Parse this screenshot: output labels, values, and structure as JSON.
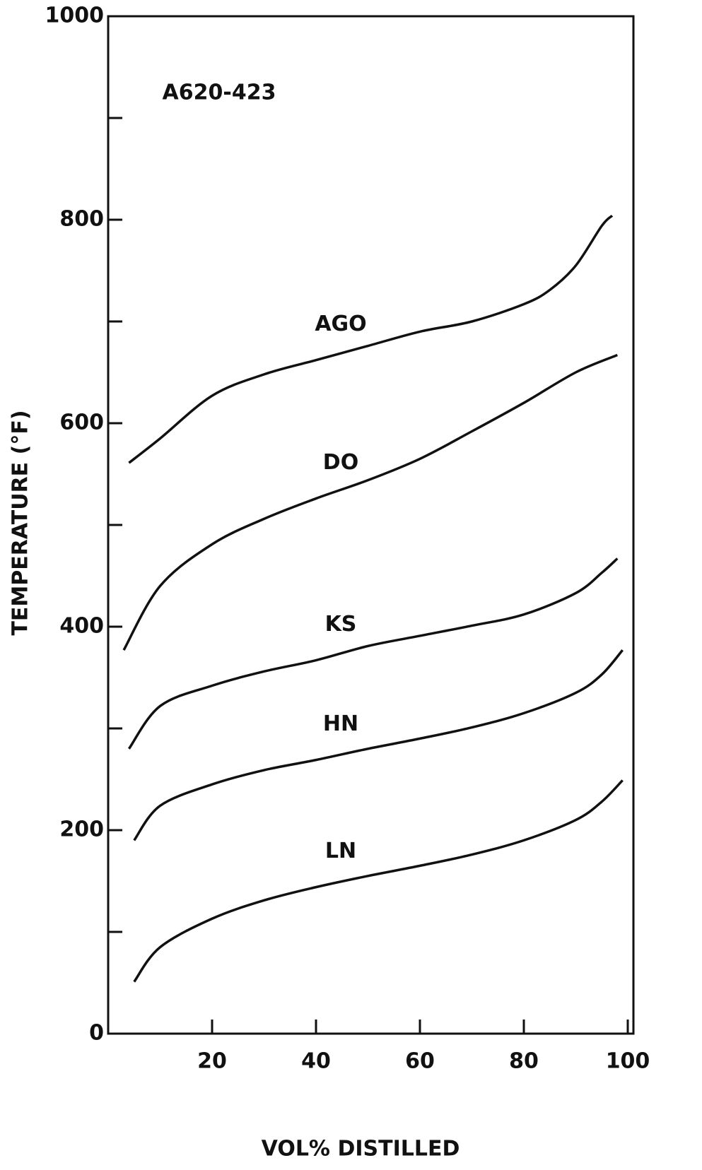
{
  "chart_data": {
    "type": "line",
    "annotation": "A620-423",
    "x_label": "VOL% DISTILLED",
    "y_label": "TEMPERATURE (°F)",
    "xlim": [
      0,
      100
    ],
    "xticks": [
      20,
      40,
      60,
      80,
      100
    ],
    "ylim": [
      0,
      1000
    ],
    "yticks": [
      0,
      200,
      400,
      600,
      800,
      1000
    ],
    "yminorticks": [
      100,
      300,
      500,
      700,
      900
    ],
    "color": "#111111",
    "series": [
      {
        "name": "AGO",
        "x": [
          4,
          10,
          20,
          30,
          40,
          50,
          60,
          70,
          80,
          85,
          90,
          95,
          97
        ],
        "values": [
          561,
          585,
          627,
          648,
          662,
          676,
          690,
          700,
          717,
          731,
          755,
          794,
          804
        ]
      },
      {
        "name": "DO",
        "x": [
          3,
          10,
          20,
          30,
          40,
          50,
          60,
          70,
          80,
          90,
          98
        ],
        "values": [
          377,
          440,
          481,
          506,
          526,
          544,
          565,
          592,
          620,
          650,
          667
        ]
      },
      {
        "name": "KS",
        "x": [
          4,
          10,
          20,
          30,
          40,
          50,
          60,
          70,
          80,
          90,
          95,
          98
        ],
        "values": [
          280,
          322,
          342,
          356,
          367,
          381,
          391,
          401,
          412,
          433,
          453,
          467
        ]
      },
      {
        "name": "HN",
        "x": [
          5,
          10,
          20,
          30,
          40,
          50,
          60,
          70,
          80,
          90,
          95,
          99
        ],
        "values": [
          190,
          224,
          245,
          259,
          269,
          280,
          290,
          301,
          315,
          335,
          353,
          377
        ]
      },
      {
        "name": "LN",
        "x": [
          5,
          10,
          20,
          30,
          40,
          50,
          60,
          70,
          80,
          90,
          95,
          99
        ],
        "values": [
          51,
          85,
          113,
          131,
          144,
          155,
          165,
          176,
          190,
          210,
          228,
          249
        ]
      }
    ]
  }
}
